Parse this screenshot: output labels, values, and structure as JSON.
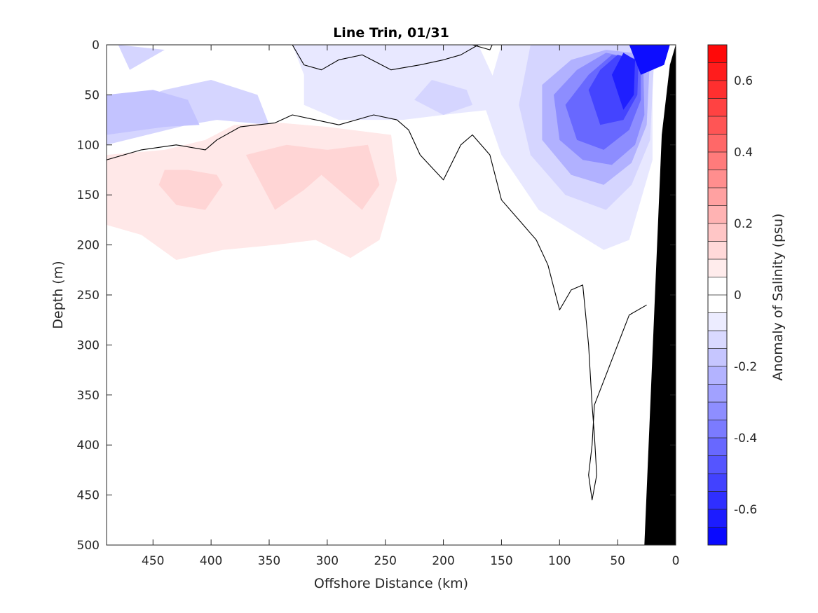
{
  "chart_data": {
    "type": "heatmap",
    "title": "Line Trin, 01/31",
    "xlabel": "Offshore Distance (km)",
    "ylabel": "Depth (m)",
    "colorbar_label": "Anomaly of Salinity (psu)",
    "xlim": [
      490,
      0
    ],
    "ylim": [
      500,
      0
    ],
    "x_reversed": true,
    "y_reversed": true,
    "x_ticks": [
      "450",
      "400",
      "350",
      "300",
      "250",
      "200",
      "150",
      "100",
      "50",
      "0"
    ],
    "y_ticks": [
      "0",
      "50",
      "100",
      "150",
      "200",
      "250",
      "300",
      "350",
      "400",
      "450",
      "500"
    ],
    "colorbar": {
      "min": -0.7,
      "max": 0.7,
      "levels": 28,
      "ticks": [
        "0.6",
        "0.4",
        "0.2",
        "0",
        "-0.2",
        "-0.4",
        "-0.6"
      ],
      "positive_color": "#ff0000",
      "negative_color": "#0000ff",
      "zero_color": "#ffffff"
    },
    "land_color": "#000000",
    "land_polygon_km_m": [
      [
        0,
        0
      ],
      [
        0,
        500
      ],
      [
        27,
        500
      ],
      [
        12,
        90
      ],
      [
        5,
        20
      ]
    ],
    "fields": [
      {
        "sign": "negative",
        "level": 0.05,
        "polygon_km_m": [
          [
            490,
            0
          ],
          [
            330,
            0
          ],
          [
            320,
            30
          ],
          [
            320,
            60
          ],
          [
            290,
            75
          ],
          [
            235,
            75
          ],
          [
            185,
            68
          ],
          [
            160,
            65
          ],
          [
            150,
            50
          ],
          [
            170,
            0
          ]
        ]
      },
      {
        "sign": "negative",
        "level": 0.05,
        "polygon_km_m": [
          [
            150,
            0
          ],
          [
            165,
            60
          ],
          [
            150,
            110
          ],
          [
            118,
            165
          ],
          [
            62,
            205
          ],
          [
            40,
            195
          ],
          [
            20,
            115
          ],
          [
            20,
            0
          ]
        ]
      },
      {
        "sign": "negative",
        "level": 0.1,
        "polygon_km_m": [
          [
            490,
            0
          ],
          [
            490,
            65
          ],
          [
            440,
            45
          ],
          [
            400,
            35
          ],
          [
            360,
            50
          ],
          [
            350,
            80
          ],
          [
            395,
            75
          ],
          [
            420,
            80
          ],
          [
            490,
            100
          ]
        ]
      },
      {
        "sign": "negative",
        "level": 0.1,
        "polygon_km_m": [
          [
            480,
            0
          ],
          [
            470,
            25
          ],
          [
            440,
            5
          ]
        ]
      },
      {
        "sign": "negative",
        "level": 0.1,
        "polygon_km_m": [
          [
            225,
            55
          ],
          [
            210,
            35
          ],
          [
            180,
            45
          ],
          [
            175,
            60
          ],
          [
            200,
            70
          ]
        ]
      },
      {
        "sign": "negative",
        "level": 0.1,
        "polygon_km_m": [
          [
            125,
            0
          ],
          [
            135,
            60
          ],
          [
            125,
            110
          ],
          [
            95,
            150
          ],
          [
            60,
            165
          ],
          [
            38,
            140
          ],
          [
            22,
            95
          ],
          [
            18,
            0
          ]
        ]
      },
      {
        "sign": "negative",
        "level": 0.15,
        "polygon_km_m": [
          [
            490,
            50
          ],
          [
            450,
            45
          ],
          [
            420,
            55
          ],
          [
            410,
            80
          ],
          [
            440,
            82
          ],
          [
            490,
            90
          ]
        ]
      },
      {
        "sign": "negative",
        "level": 0.2,
        "polygon_km_m": [
          [
            115,
            40
          ],
          [
            115,
            95
          ],
          [
            90,
            130
          ],
          [
            62,
            140
          ],
          [
            38,
            118
          ],
          [
            25,
            80
          ],
          [
            22,
            10
          ],
          [
            60,
            5
          ],
          [
            90,
            15
          ]
        ]
      },
      {
        "sign": "negative",
        "level": 0.3,
        "polygon_km_m": [
          [
            105,
            50
          ],
          [
            100,
            95
          ],
          [
            80,
            115
          ],
          [
            55,
            120
          ],
          [
            35,
            100
          ],
          [
            27,
            70
          ],
          [
            28,
            15
          ],
          [
            60,
            8
          ],
          [
            85,
            25
          ]
        ]
      },
      {
        "sign": "negative",
        "level": 0.4,
        "polygon_km_m": [
          [
            95,
            60
          ],
          [
            85,
            95
          ],
          [
            62,
            105
          ],
          [
            40,
            85
          ],
          [
            30,
            55
          ],
          [
            30,
            15
          ],
          [
            55,
            10
          ],
          [
            75,
            30
          ]
        ]
      },
      {
        "sign": "negative",
        "level": 0.5,
        "polygon_km_m": [
          [
            75,
            45
          ],
          [
            65,
            80
          ],
          [
            45,
            75
          ],
          [
            33,
            50
          ],
          [
            32,
            15
          ],
          [
            50,
            10
          ],
          [
            65,
            25
          ]
        ]
      },
      {
        "sign": "negative",
        "level": 0.6,
        "polygon_km_m": [
          [
            55,
            30
          ],
          [
            45,
            65
          ],
          [
            36,
            50
          ],
          [
            35,
            15
          ],
          [
            45,
            8
          ]
        ]
      },
      {
        "sign": "negative",
        "level": 0.65,
        "polygon_km_m": [
          [
            40,
            0
          ],
          [
            30,
            30
          ],
          [
            10,
            20
          ],
          [
            5,
            0
          ]
        ]
      },
      {
        "sign": "positive",
        "level": 0.05,
        "polygon_km_m": [
          [
            490,
            110
          ],
          [
            490,
            180
          ],
          [
            460,
            190
          ],
          [
            430,
            215
          ],
          [
            390,
            205
          ],
          [
            345,
            200
          ],
          [
            310,
            195
          ],
          [
            280,
            213
          ],
          [
            255,
            195
          ],
          [
            240,
            135
          ],
          [
            245,
            90
          ],
          [
            300,
            82
          ],
          [
            340,
            78
          ],
          [
            380,
            80
          ],
          [
            405,
            95
          ],
          [
            440,
            105
          ]
        ]
      },
      {
        "sign": "positive",
        "level": 0.1,
        "polygon_km_m": [
          [
            445,
            140
          ],
          [
            430,
            160
          ],
          [
            405,
            165
          ],
          [
            390,
            140
          ],
          [
            395,
            130
          ],
          [
            420,
            125
          ],
          [
            440,
            125
          ]
        ]
      },
      {
        "sign": "positive",
        "level": 0.1,
        "polygon_km_m": [
          [
            370,
            110
          ],
          [
            345,
            165
          ],
          [
            320,
            145
          ],
          [
            305,
            130
          ],
          [
            270,
            165
          ],
          [
            255,
            140
          ],
          [
            265,
            100
          ],
          [
            300,
            105
          ],
          [
            335,
            100
          ]
        ]
      }
    ],
    "zero_contours_km_m": [
      [
        [
          490,
          115
        ],
        [
          460,
          105
        ],
        [
          430,
          100
        ],
        [
          405,
          105
        ],
        [
          395,
          95
        ],
        [
          375,
          82
        ],
        [
          345,
          78
        ],
        [
          330,
          70
        ],
        [
          310,
          75
        ],
        [
          290,
          80
        ],
        [
          260,
          70
        ],
        [
          240,
          75
        ],
        [
          230,
          85
        ],
        [
          220,
          110
        ],
        [
          200,
          135
        ],
        [
          185,
          100
        ],
        [
          175,
          90
        ],
        [
          160,
          110
        ],
        [
          150,
          155
        ],
        [
          135,
          175
        ],
        [
          120,
          195
        ],
        [
          110,
          220
        ],
        [
          100,
          265
        ],
        [
          90,
          245
        ],
        [
          80,
          240
        ],
        [
          75,
          300
        ],
        [
          72,
          360
        ],
        [
          70,
          390
        ],
        [
          68,
          430
        ],
        [
          72,
          455
        ],
        [
          75,
          430
        ],
        [
          72,
          400
        ],
        [
          70,
          360
        ],
        [
          60,
          330
        ],
        [
          50,
          300
        ],
        [
          40,
          270
        ],
        [
          25,
          260
        ]
      ],
      [
        [
          330,
          0
        ],
        [
          320,
          20
        ],
        [
          305,
          25
        ],
        [
          290,
          15
        ],
        [
          270,
          10
        ],
        [
          245,
          25
        ],
        [
          220,
          20
        ],
        [
          200,
          15
        ],
        [
          185,
          10
        ],
        [
          170,
          0
        ]
      ],
      [
        [
          175,
          0
        ],
        [
          160,
          5
        ],
        [
          158,
          0
        ]
      ]
    ]
  }
}
